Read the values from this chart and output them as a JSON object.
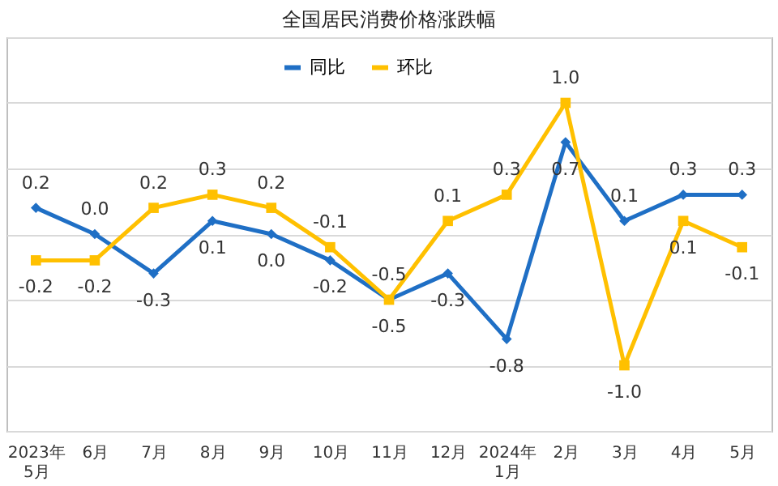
{
  "chart_data": {
    "type": "line",
    "title": "全国居民消费价格涨跌幅",
    "categories": [
      "2023年\n5月",
      "6月",
      "7月",
      "8月",
      "9月",
      "10月",
      "11月",
      "12月",
      "2024年\n1月",
      "2月",
      "3月",
      "4月",
      "5月"
    ],
    "series": [
      {
        "name": "同比",
        "color": "#1f6fc5",
        "marker": "diamond",
        "values": [
          0.2,
          0.0,
          -0.3,
          0.1,
          0.0,
          -0.2,
          -0.5,
          -0.3,
          -0.8,
          0.7,
          0.1,
          0.3,
          0.3
        ],
        "value_labels": [
          "0.2",
          "0.0",
          "-0.3",
          "0.1",
          "0.0",
          "-0.2",
          "-0.5",
          "-0.3",
          "-0.8",
          "0.7",
          "0.1",
          "0.3",
          "0.3"
        ]
      },
      {
        "name": "环比",
        "color": "#ffc000",
        "marker": "square",
        "values": [
          -0.2,
          -0.2,
          0.2,
          0.3,
          0.2,
          -0.1,
          -0.5,
          0.1,
          0.3,
          1.0,
          -1.0,
          0.1,
          -0.1
        ],
        "value_labels": [
          "-0.2",
          "-0.2",
          "0.2",
          "0.3",
          "0.2",
          "-0.1",
          "-0.5",
          "0.1",
          "0.3",
          "1.0",
          "-1.0",
          "0.1",
          "-0.1"
        ]
      }
    ],
    "ylim": [
      -1.5,
      1.5
    ],
    "grid": "y",
    "legend": "top",
    "tick_labels": "x",
    "line_style": "solid"
  }
}
